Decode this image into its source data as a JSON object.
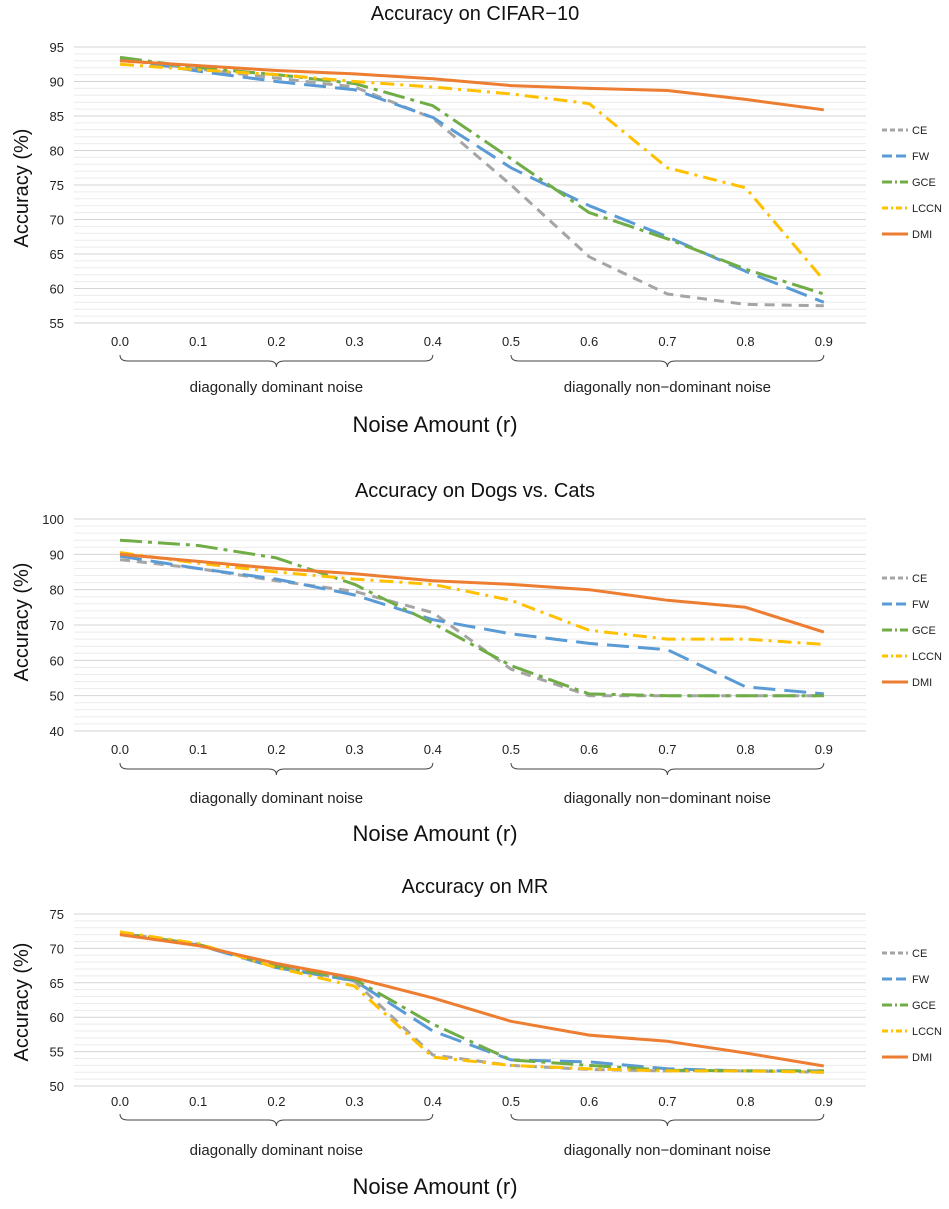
{
  "series_styles": [
    {
      "name": "CE",
      "color": "#a5a5a5",
      "dash": "10,7"
    },
    {
      "name": "FW",
      "color": "#5b9bd5",
      "dash": "22,9"
    },
    {
      "name": "GCE",
      "color": "#70ad47",
      "dash": "22,6,4,6"
    },
    {
      "name": "LCCN",
      "color": "#ffc000",
      "dash": "14,6,3,6"
    },
    {
      "name": "DMI",
      "color": "#ed7d31",
      "dash": ""
    }
  ],
  "chart_data": [
    {
      "type": "line",
      "title": "Accuracy on CIFAR−10",
      "xlabel": "Noise Amount (r)",
      "ylabel": "Accuracy (%)",
      "x": [
        "0.0",
        "0.1",
        "0.2",
        "0.3",
        "0.4",
        "0.5",
        "0.6",
        "0.7",
        "0.8",
        "0.9"
      ],
      "ylim": [
        55,
        95
      ],
      "yticks": [
        55,
        60,
        65,
        70,
        75,
        80,
        85,
        90,
        95
      ],
      "grid": true,
      "legend": "right",
      "groups": [
        {
          "label": "diagonally dominant noise",
          "from": 0,
          "to": 4
        },
        {
          "label": "diagonally non−dominant noise",
          "from": 5,
          "to": 9
        }
      ],
      "series": [
        {
          "name": "CE",
          "values": [
            93.2,
            91.8,
            90.5,
            89.2,
            84.7,
            75.0,
            64.6,
            59.2,
            57.7,
            57.5
          ]
        },
        {
          "name": "FW",
          "values": [
            93.3,
            91.5,
            90.0,
            88.8,
            84.8,
            77.5,
            72.0,
            67.5,
            62.5,
            58.0
          ]
        },
        {
          "name": "GCE",
          "values": [
            93.5,
            92.0,
            91.0,
            89.7,
            86.5,
            78.8,
            71.0,
            67.2,
            62.8,
            59.2
          ]
        },
        {
          "name": "LCCN",
          "values": [
            92.5,
            91.7,
            91.0,
            90.0,
            89.2,
            88.2,
            86.8,
            77.5,
            74.6,
            61.2
          ]
        },
        {
          "name": "DMI",
          "values": [
            93.0,
            92.3,
            91.6,
            91.1,
            90.4,
            89.4,
            89.0,
            88.7,
            87.4,
            85.9
          ]
        }
      ]
    },
    {
      "type": "line",
      "title": "Accuracy on Dogs vs. Cats",
      "xlabel": "Noise Amount (r)",
      "ylabel": "Accuracy (%)",
      "x": [
        "0.0",
        "0.1",
        "0.2",
        "0.3",
        "0.4",
        "0.5",
        "0.6",
        "0.7",
        "0.8",
        "0.9"
      ],
      "ylim": [
        40,
        100
      ],
      "yticks": [
        40,
        50,
        60,
        70,
        80,
        90,
        100
      ],
      "grid": true,
      "legend": "right",
      "groups": [
        {
          "label": "diagonally dominant noise",
          "from": 0,
          "to": 4
        },
        {
          "label": "diagonally non−dominant noise",
          "from": 5,
          "to": 9
        }
      ],
      "series": [
        {
          "name": "CE",
          "values": [
            88.5,
            86.0,
            82.5,
            79.5,
            73.5,
            57.5,
            50.0,
            50.0,
            50.0,
            50.0
          ]
        },
        {
          "name": "FW",
          "values": [
            89.5,
            86.0,
            83.0,
            78.5,
            71.5,
            67.5,
            64.8,
            63.0,
            52.5,
            50.5
          ]
        },
        {
          "name": "GCE",
          "values": [
            94.0,
            92.5,
            89.0,
            81.5,
            70.5,
            58.5,
            50.5,
            50.0,
            50.0,
            50.0
          ]
        },
        {
          "name": "LCCN",
          "values": [
            90.5,
            87.5,
            85.0,
            83.0,
            81.5,
            77.0,
            68.5,
            66.0,
            66.0,
            64.5
          ]
        },
        {
          "name": "DMI",
          "values": [
            90.0,
            88.0,
            86.0,
            84.5,
            82.5,
            81.5,
            80.0,
            77.0,
            75.0,
            68.0
          ]
        }
      ]
    },
    {
      "type": "line",
      "title": "Accuracy on MR",
      "xlabel": "Noise Amount (r)",
      "ylabel": "Accuracy (%)",
      "x": [
        "0.0",
        "0.1",
        "0.2",
        "0.3",
        "0.4",
        "0.5",
        "0.6",
        "0.7",
        "0.8",
        "0.9"
      ],
      "ylim": [
        50,
        75
      ],
      "yticks": [
        50,
        55,
        60,
        65,
        70,
        75
      ],
      "grid": true,
      "legend": "right",
      "groups": [
        {
          "label": "diagonally dominant noise",
          "from": 0,
          "to": 4
        },
        {
          "label": "diagonally non−dominant noise",
          "from": 5,
          "to": 9
        }
      ],
      "series": [
        {
          "name": "CE",
          "values": [
            72.3,
            70.5,
            67.5,
            65.2,
            54.5,
            53.0,
            52.4,
            52.2,
            52.2,
            52.0
          ]
        },
        {
          "name": "FW",
          "values": [
            72.2,
            70.5,
            67.2,
            65.3,
            58.0,
            53.8,
            53.5,
            52.5,
            52.2,
            52.2
          ]
        },
        {
          "name": "GCE",
          "values": [
            72.2,
            70.6,
            67.4,
            65.5,
            59.0,
            53.8,
            53.0,
            52.3,
            52.2,
            52.2
          ]
        },
        {
          "name": "LCCN",
          "values": [
            72.4,
            70.7,
            67.2,
            64.5,
            54.2,
            53.0,
            52.5,
            52.2,
            52.2,
            52.0
          ]
        },
        {
          "name": "DMI",
          "values": [
            72.0,
            70.4,
            67.8,
            65.7,
            62.8,
            59.4,
            57.4,
            56.5,
            54.8,
            52.9
          ]
        }
      ]
    }
  ]
}
